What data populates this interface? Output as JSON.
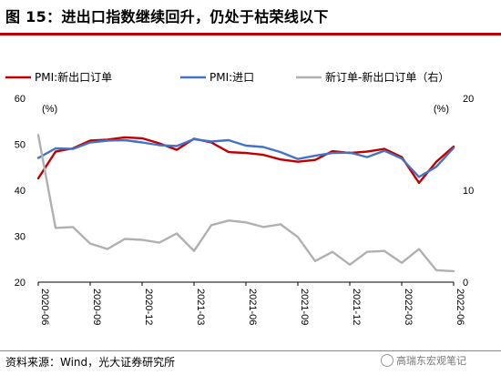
{
  "header": {
    "title": "图 15：进出口指数继续回升，仍处于枯荣线以下"
  },
  "footer": {
    "source": "资料来源：Wind，光大证券研究所",
    "watermark": "高瑞东宏观笔记"
  },
  "colors": {
    "pmi_new_export": "#c00000",
    "pmi_import": "#4472c4",
    "diff": "#b0b0b0",
    "title_rule": "#c00000"
  },
  "chart_data": {
    "type": "line",
    "x_ticks": [
      "2020-06",
      "2020-09",
      "2020-12",
      "2021-03",
      "2021-06",
      "2021-09",
      "2021-12",
      "2022-03",
      "2022-06"
    ],
    "x": [
      "2020-06",
      "2020-07",
      "2020-08",
      "2020-09",
      "2020-10",
      "2020-11",
      "2020-12",
      "2021-01",
      "2021-02",
      "2021-03",
      "2021-04",
      "2021-05",
      "2021-06",
      "2021-07",
      "2021-08",
      "2021-09",
      "2021-10",
      "2021-11",
      "2021-12",
      "2022-01",
      "2022-02",
      "2022-03",
      "2022-04",
      "2022-05",
      "2022-06"
    ],
    "series": [
      {
        "name": "PMI:新出口订单",
        "axis": "left",
        "values": [
          42.6,
          48.4,
          49.1,
          50.8,
          51.0,
          51.5,
          51.3,
          50.2,
          48.8,
          51.2,
          50.4,
          48.3,
          48.1,
          47.7,
          46.7,
          46.2,
          46.6,
          48.5,
          48.1,
          48.4,
          49.0,
          47.2,
          41.6,
          46.2,
          49.5
        ]
      },
      {
        "name": "PMI:进口",
        "axis": "left",
        "values": [
          47.0,
          49.1,
          49.0,
          50.4,
          50.8,
          50.9,
          50.4,
          49.8,
          49.6,
          51.1,
          50.6,
          50.9,
          49.7,
          49.4,
          48.3,
          46.8,
          47.5,
          48.1,
          48.2,
          47.2,
          48.6,
          46.9,
          42.9,
          45.1,
          49.2
        ]
      },
      {
        "name": "新订单-新出口订单（右）",
        "axis": "right",
        "values": [
          16.0,
          5.9,
          6.0,
          4.2,
          3.6,
          4.7,
          4.6,
          4.3,
          5.3,
          3.4,
          6.2,
          6.7,
          6.5,
          6.0,
          6.3,
          4.9,
          2.3,
          3.3,
          1.9,
          3.3,
          3.4,
          2.1,
          3.6,
          1.3,
          1.2
        ]
      }
    ],
    "y_left": {
      "label": "(%)",
      "ylim": [
        20,
        60
      ],
      "ticks": [
        20,
        30,
        40,
        50,
        60
      ]
    },
    "y_right": {
      "label": "(%)",
      "ylim": [
        0,
        20
      ],
      "ticks": [
        0,
        10,
        20
      ]
    },
    "legend_position": "top",
    "grid": false
  }
}
